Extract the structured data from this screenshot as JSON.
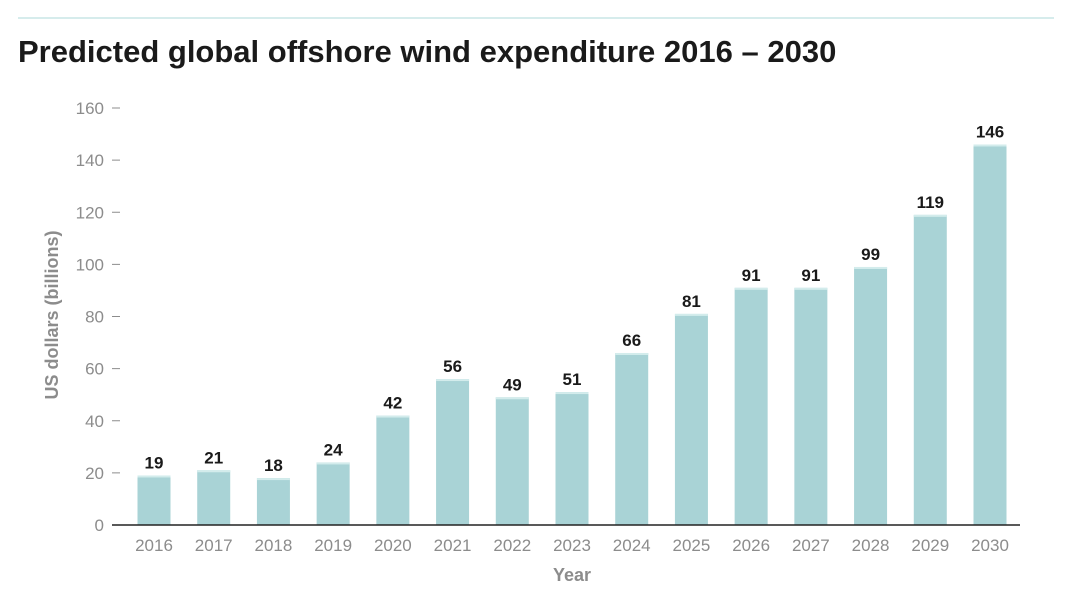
{
  "chart_data": {
    "type": "bar",
    "title": "Predicted global offshore wind expenditure 2016 – 2030",
    "xlabel": "Year",
    "ylabel": "US dollars (billions)",
    "categories": [
      "2016",
      "2017",
      "2018",
      "2019",
      "2020",
      "2021",
      "2022",
      "2023",
      "2024",
      "2025",
      "2026",
      "2027",
      "2028",
      "2029",
      "2030"
    ],
    "values": [
      19,
      21,
      18,
      24,
      42,
      56,
      49,
      51,
      66,
      81,
      91,
      91,
      99,
      119,
      146
    ],
    "data_labels": [
      "19",
      "21",
      "18",
      "24",
      "42",
      "56",
      "49",
      "51",
      "66",
      "81",
      "91",
      "91",
      "99",
      "119",
      "146"
    ],
    "ylim": [
      0,
      160
    ],
    "yticks": [
      "0",
      "20",
      "40",
      "60",
      "80",
      "100",
      "120",
      "140",
      "160"
    ],
    "grid": false,
    "legend": "none",
    "colors": {
      "bar": "#a9d3d6",
      "bar_top": "#d3ecec",
      "axis": "#222222",
      "tick_text": "#8c8c8c",
      "value_text": "#1a1a1a",
      "title_text": "#1a1a1a",
      "rule": "#d6ecec"
    }
  }
}
